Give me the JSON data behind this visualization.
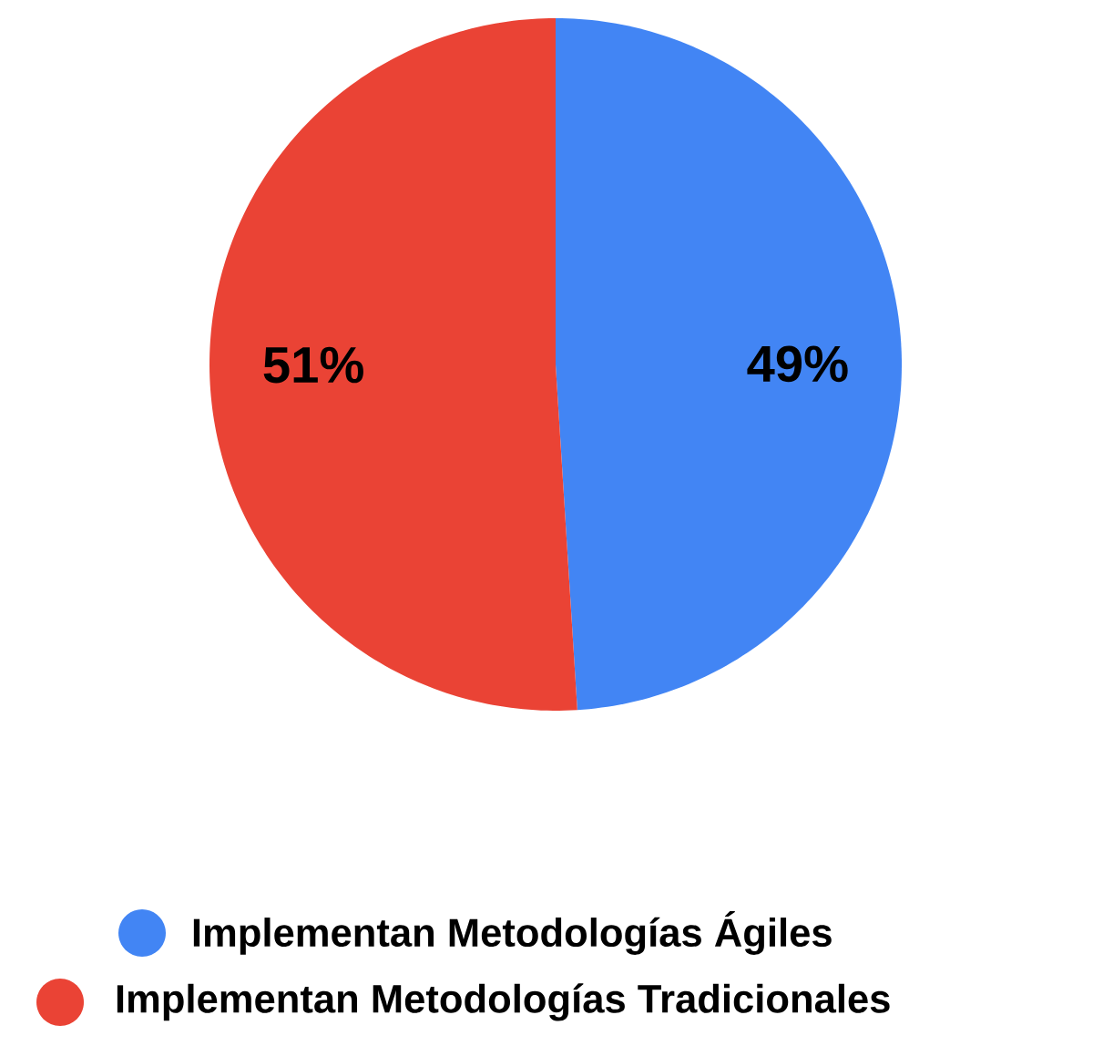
{
  "chart_data": {
    "type": "pie",
    "categories": [
      "Implementan Metodologías Ágiles",
      "Implementan Metodologías Tradicionales"
    ],
    "values": [
      49,
      51
    ],
    "colors": [
      "#4285f4",
      "#ea4335"
    ],
    "value_labels": [
      "49%",
      "51%"
    ],
    "legend": "bottom"
  }
}
